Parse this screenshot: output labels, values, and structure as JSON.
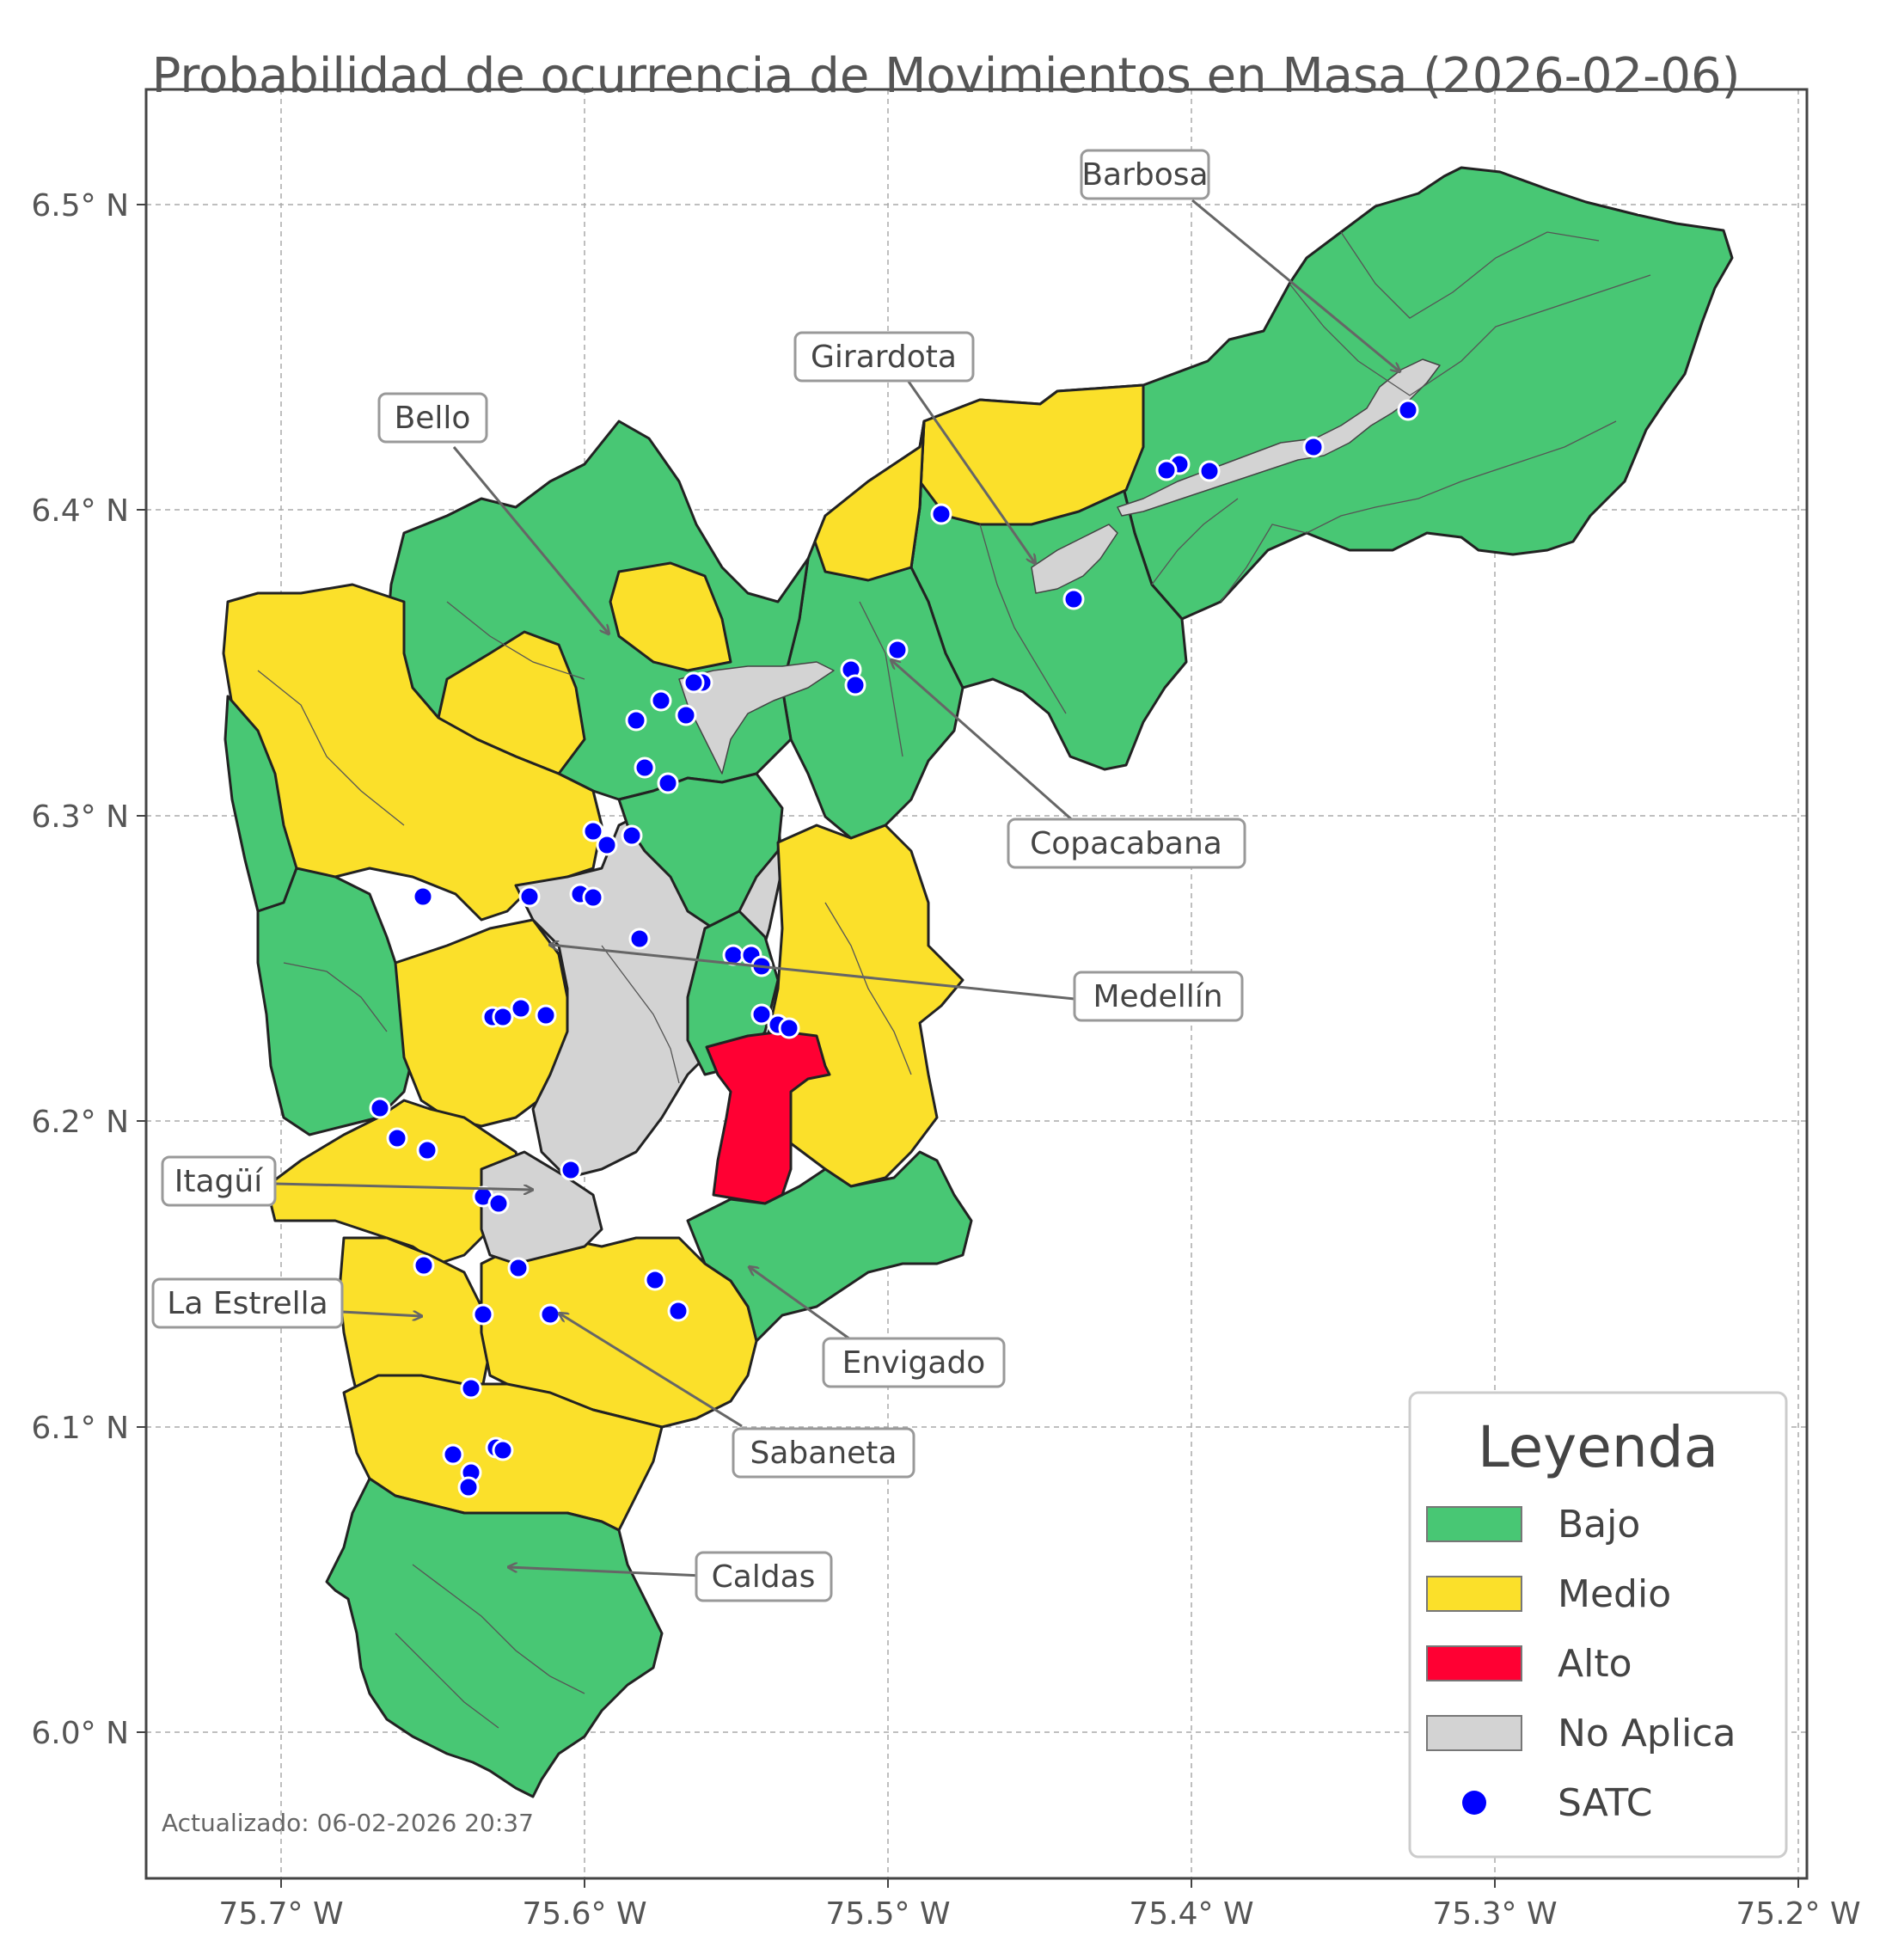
{
  "title": "Probabilidad de ocurrencia de Movimientos en Masa (2026-02-06)",
  "axes": {
    "x_ticks": [
      "75.7° W",
      "75.6° W",
      "75.5° W",
      "75.4° W",
      "75.3° W",
      "75.2° W"
    ],
    "y_ticks": [
      "6.5° N",
      "6.4° N",
      "6.3° N",
      "6.2° N",
      "6.1° N",
      "6.0° N"
    ],
    "grid": true
  },
  "municipalities": [
    {
      "name": "Barbosa",
      "risk": "Bajo"
    },
    {
      "name": "Girardota",
      "risk": "Bajo"
    },
    {
      "name": "Bello",
      "risk": "Bajo"
    },
    {
      "name": "Copacabana",
      "risk": "Bajo"
    },
    {
      "name": "Medellín",
      "risk": "Medio"
    },
    {
      "name": "Itagüí",
      "risk": "Medio"
    },
    {
      "name": "La Estrella",
      "risk": "Medio"
    },
    {
      "name": "Envigado",
      "risk": "Alto"
    },
    {
      "name": "Sabaneta",
      "risk": "Medio"
    },
    {
      "name": "Caldas",
      "risk": "Bajo"
    }
  ],
  "legend": {
    "title": "Leyenda",
    "items": [
      {
        "label": "Bajo",
        "color": "#48c774"
      },
      {
        "label": "Medio",
        "color": "#fbe02a"
      },
      {
        "label": "Alto",
        "color": "#ff0033"
      },
      {
        "label": "No Aplica",
        "color": "#d3d3d3"
      },
      {
        "label": "SATC",
        "color": "#0000ff"
      }
    ]
  },
  "colors": {
    "bajo": "#48c774",
    "medio": "#fbe02a",
    "alto": "#ff0033",
    "no_aplica": "#d3d3d3",
    "satc": "#0000ff"
  },
  "updated": "Actualizado: 06-02-2026 20:37"
}
